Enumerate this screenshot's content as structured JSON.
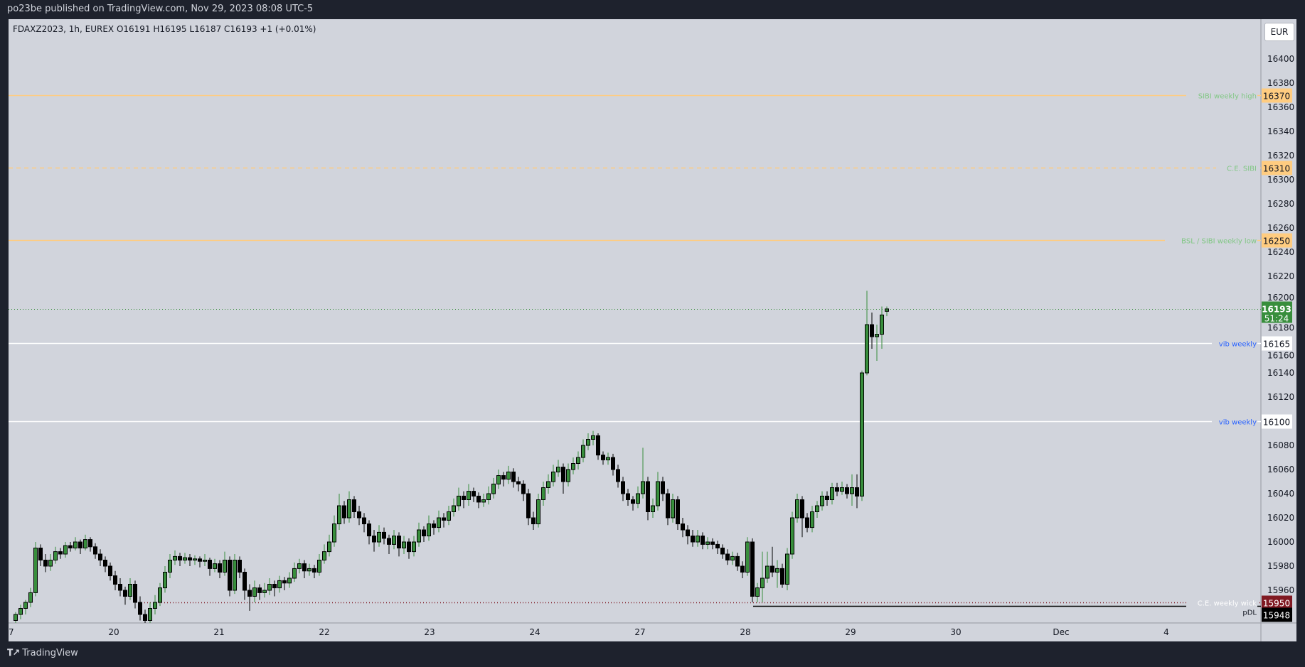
{
  "header": {
    "published": "po23be published on TradingView.com, Nov 29, 2023 08:08 UTC-5"
  },
  "legend": {
    "text": "FDAXZ2023, 1h, EUREX  O16191  H16195  L16187  C16193  +1 (+0.01%)"
  },
  "currency_button": "EUR",
  "footer": {
    "logo_text": "TradingView",
    "logo_icon": "tradingview-logo-icon"
  },
  "colors": {
    "up": "#388e3c",
    "down": "#000000",
    "background": "#d1d4dc",
    "page": "#1e222d",
    "sibi": "#ffcc80",
    "sibi_label": "#81c784",
    "vib_label": "#2962ff",
    "wick_level": "#801922"
  },
  "chart_data": {
    "type": "candlestick",
    "symbol": "FDAXZ2023",
    "interval": "1h",
    "exchange": "EUREX",
    "ylim": [
      15933,
      16433
    ],
    "yticks": [
      15960,
      15980,
      16000,
      16020,
      16040,
      16060,
      16080,
      16100,
      16120,
      16140,
      16160,
      16180,
      16200,
      16220,
      16240,
      16260,
      16280,
      16300,
      16320,
      16340,
      16360,
      16380,
      16400
    ],
    "xticks": [
      "7",
      "20",
      "21",
      "22",
      "23",
      "24",
      "27",
      "28",
      "29",
      "30",
      "Dec",
      "4"
    ],
    "grid": false,
    "current_price": {
      "value": "16193",
      "countdown": "51:24"
    },
    "levels": [
      {
        "price": 16370,
        "label": "SIBI weekly high",
        "tag": "16370",
        "style": "solid",
        "kind": "sibi"
      },
      {
        "price": 16310,
        "label": "C.E. SIBI",
        "tag": "16310",
        "style": "dashed",
        "kind": "sibi"
      },
      {
        "price": 16250,
        "label": "BSL / SIBI weekly low",
        "tag": "16250",
        "style": "solid",
        "kind": "sibi"
      },
      {
        "price": 16165,
        "label": "vib weekly",
        "tag": "16165",
        "style": "solid",
        "kind": "vib"
      },
      {
        "price": 16100,
        "label": "vib weekly",
        "tag": "16100",
        "style": "solid",
        "kind": "vib"
      },
      {
        "price": 15950,
        "label": "C.E. weekly wick",
        "tag": "15950",
        "style": "dotted",
        "kind": "wick"
      },
      {
        "price": 15948,
        "label": "pDL",
        "tag": "15948",
        "style": "solid",
        "kind": "pdl"
      }
    ],
    "candles_ohlc": [
      [
        15935,
        15942,
        15933,
        15940
      ],
      [
        15940,
        15948,
        15936,
        15945
      ],
      [
        15945,
        15952,
        15940,
        15950
      ],
      [
        15950,
        15962,
        15946,
        15958
      ],
      [
        15958,
        16000,
        15955,
        15995
      ],
      [
        15995,
        15998,
        15980,
        15985
      ],
      [
        15985,
        15990,
        15975,
        15980
      ],
      [
        15980,
        15990,
        15976,
        15985
      ],
      [
        15985,
        15996,
        15982,
        15992
      ],
      [
        15992,
        15995,
        15986,
        15990
      ],
      [
        15990,
        16000,
        15987,
        15997
      ],
      [
        15997,
        16000,
        15992,
        15995
      ],
      [
        15995,
        16004,
        15993,
        16000
      ],
      [
        16000,
        16002,
        15990,
        15995
      ],
      [
        15995,
        16006,
        15993,
        16002
      ],
      [
        16002,
        16004,
        15992,
        15996
      ],
      [
        15996,
        15999,
        15986,
        15990
      ],
      [
        15990,
        15994,
        15980,
        15985
      ],
      [
        15985,
        15988,
        15975,
        15980
      ],
      [
        15980,
        15983,
        15968,
        15972
      ],
      [
        15972,
        15976,
        15960,
        15965
      ],
      [
        15965,
        15970,
        15955,
        15960
      ],
      [
        15960,
        15963,
        15948,
        15955
      ],
      [
        15955,
        15970,
        15952,
        15965
      ],
      [
        15965,
        15968,
        15945,
        15950
      ],
      [
        15950,
        15955,
        15935,
        15940
      ],
      [
        15940,
        15944,
        15930,
        15935
      ],
      [
        15935,
        15950,
        15933,
        15945
      ],
      [
        15945,
        15956,
        15940,
        15950
      ],
      [
        15950,
        15966,
        15947,
        15962
      ],
      [
        15962,
        15980,
        15958,
        15975
      ],
      [
        15975,
        15990,
        15970,
        15985
      ],
      [
        15985,
        15993,
        15981,
        15988
      ],
      [
        15988,
        15991,
        15980,
        15985
      ],
      [
        15985,
        15991,
        15982,
        15987
      ],
      [
        15987,
        15990,
        15980,
        15985
      ],
      [
        15985,
        15989,
        15981,
        15986
      ],
      [
        15986,
        15988,
        15979,
        15984
      ],
      [
        15984,
        15990,
        15980,
        15985
      ],
      [
        15985,
        15987,
        15972,
        15978
      ],
      [
        15978,
        15986,
        15975,
        15982
      ],
      [
        15982,
        15985,
        15970,
        15975
      ],
      [
        15975,
        15992,
        15972,
        15985
      ],
      [
        15985,
        15988,
        15955,
        15960
      ],
      [
        15960,
        15990,
        15957,
        15985
      ],
      [
        15985,
        15988,
        15970,
        15975
      ],
      [
        15975,
        15978,
        15952,
        15960
      ],
      [
        15960,
        15965,
        15943,
        15955
      ],
      [
        15955,
        15968,
        15950,
        15962
      ],
      [
        15962,
        15965,
        15952,
        15958
      ],
      [
        15958,
        15966,
        15954,
        15960
      ],
      [
        15960,
        15970,
        15956,
        15965
      ],
      [
        15965,
        15968,
        15955,
        15962
      ],
      [
        15962,
        15972,
        15958,
        15968
      ],
      [
        15968,
        15971,
        15960,
        15966
      ],
      [
        15966,
        15975,
        15962,
        15970
      ],
      [
        15970,
        15983,
        15967,
        15978
      ],
      [
        15978,
        15986,
        15974,
        15982
      ],
      [
        15982,
        15985,
        15970,
        15976
      ],
      [
        15976,
        15982,
        15972,
        15978
      ],
      [
        15978,
        15981,
        15970,
        15975
      ],
      [
        15975,
        15990,
        15972,
        15985
      ],
      [
        15985,
        15998,
        15982,
        15992
      ],
      [
        15992,
        16006,
        15988,
        16000
      ],
      [
        16000,
        16022,
        15996,
        16015
      ],
      [
        16015,
        16040,
        16010,
        16030
      ],
      [
        16030,
        16034,
        16015,
        16020
      ],
      [
        16020,
        16042,
        16016,
        16035
      ],
      [
        16035,
        16038,
        16020,
        16025
      ],
      [
        16025,
        16030,
        16014,
        16020
      ],
      [
        16020,
        16024,
        16008,
        16015
      ],
      [
        16015,
        16018,
        15998,
        16005
      ],
      [
        16005,
        16010,
        15992,
        16000
      ],
      [
        16000,
        16014,
        15996,
        16008
      ],
      [
        16008,
        16012,
        15998,
        16003
      ],
      [
        16003,
        16006,
        15990,
        15998
      ],
      [
        15998,
        16010,
        15994,
        16005
      ],
      [
        16005,
        16008,
        15988,
        15995
      ],
      [
        15995,
        16005,
        15990,
        16000
      ],
      [
        16000,
        16003,
        15986,
        15992
      ],
      [
        15992,
        16005,
        15988,
        16000
      ],
      [
        16000,
        16016,
        15996,
        16010
      ],
      [
        16010,
        16013,
        16000,
        16005
      ],
      [
        16005,
        16022,
        16001,
        16015
      ],
      [
        16015,
        16018,
        16006,
        16012
      ],
      [
        16012,
        16026,
        16008,
        16020
      ],
      [
        16020,
        16024,
        16012,
        16018
      ],
      [
        16018,
        16030,
        16014,
        16025
      ],
      [
        16025,
        16036,
        16021,
        16030
      ],
      [
        16030,
        16045,
        16026,
        16038
      ],
      [
        16038,
        16042,
        16028,
        16035
      ],
      [
        16035,
        16048,
        16030,
        16042
      ],
      [
        16042,
        16045,
        16033,
        16038
      ],
      [
        16038,
        16041,
        16028,
        16033
      ],
      [
        16033,
        16040,
        16029,
        16035
      ],
      [
        16035,
        16046,
        16031,
        16040
      ],
      [
        16040,
        16053,
        16036,
        16048
      ],
      [
        16048,
        16060,
        16044,
        16055
      ],
      [
        16055,
        16058,
        16046,
        16052
      ],
      [
        16052,
        16063,
        16048,
        16058
      ],
      [
        16058,
        16061,
        16045,
        16050
      ],
      [
        16050,
        16054,
        16042,
        16048
      ],
      [
        16048,
        16051,
        16034,
        16040
      ],
      [
        16040,
        16044,
        16014,
        16020
      ],
      [
        16020,
        16025,
        16010,
        16015
      ],
      [
        16015,
        16040,
        16012,
        16035
      ],
      [
        16035,
        16050,
        16030,
        16045
      ],
      [
        16045,
        16056,
        16040,
        16050
      ],
      [
        16050,
        16064,
        16046,
        16058
      ],
      [
        16058,
        16068,
        16054,
        16062
      ],
      [
        16062,
        16065,
        16040,
        16050
      ],
      [
        16050,
        16065,
        16046,
        16060
      ],
      [
        16060,
        16070,
        16056,
        16065
      ],
      [
        16065,
        16075,
        16060,
        16070
      ],
      [
        16070,
        16085,
        16066,
        16080
      ],
      [
        16080,
        16090,
        16076,
        16085
      ],
      [
        16085,
        16092,
        16080,
        16088
      ],
      [
        16088,
        16090,
        16068,
        16072
      ],
      [
        16072,
        16075,
        16064,
        16068
      ],
      [
        16068,
        16074,
        16064,
        16070
      ],
      [
        16070,
        16073,
        16055,
        16060
      ],
      [
        16060,
        16064,
        16045,
        16050
      ],
      [
        16050,
        16054,
        16034,
        16040
      ],
      [
        16040,
        16044,
        16030,
        16035
      ],
      [
        16035,
        16038,
        16026,
        16032
      ],
      [
        16032,
        16046,
        16028,
        16040
      ],
      [
        16040,
        16078,
        16036,
        16050
      ],
      [
        16050,
        16054,
        16018,
        16025
      ],
      [
        16025,
        16036,
        16020,
        16030
      ],
      [
        16030,
        16058,
        16026,
        16050
      ],
      [
        16050,
        16054,
        16034,
        16040
      ],
      [
        16040,
        16044,
        16014,
        16020
      ],
      [
        16020,
        16040,
        16016,
        16035
      ],
      [
        16035,
        16038,
        16010,
        16015
      ],
      [
        16015,
        16020,
        16004,
        16010
      ],
      [
        16010,
        16014,
        15998,
        16005
      ],
      [
        16005,
        16010,
        15996,
        16000
      ],
      [
        16000,
        16010,
        15996,
        16005
      ],
      [
        16005,
        16008,
        15994,
        15998
      ],
      [
        15998,
        16004,
        15994,
        16000
      ],
      [
        16000,
        16003,
        15994,
        15998
      ],
      [
        15998,
        16001,
        15990,
        15995
      ],
      [
        15995,
        15998,
        15986,
        15990
      ],
      [
        15990,
        15994,
        15981,
        15985
      ],
      [
        15985,
        15992,
        15981,
        15988
      ],
      [
        15988,
        15991,
        15976,
        15980
      ],
      [
        15980,
        15984,
        15970,
        15975
      ],
      [
        15975,
        16004,
        15972,
        16000
      ],
      [
        16000,
        16003,
        15950,
        15955
      ],
      [
        15955,
        15966,
        15950,
        15962
      ],
      [
        15962,
        15992,
        15950,
        15970
      ],
      [
        15970,
        15992,
        15966,
        15980
      ],
      [
        15980,
        15996,
        15971,
        15975
      ],
      [
        15975,
        15985,
        15962,
        15978
      ],
      [
        15978,
        15982,
        15962,
        15965
      ],
      [
        15965,
        15995,
        15960,
        15990
      ],
      [
        15990,
        16025,
        15986,
        16020
      ],
      [
        16020,
        16040,
        16016,
        16035
      ],
      [
        16035,
        16038,
        16004,
        16020
      ],
      [
        16020,
        16024,
        16008,
        16012
      ],
      [
        16012,
        16030,
        16008,
        16025
      ],
      [
        16025,
        16034,
        16020,
        16030
      ],
      [
        16030,
        16042,
        16026,
        16038
      ],
      [
        16038,
        16042,
        16030,
        16035
      ],
      [
        16035,
        16049,
        16031,
        16045
      ],
      [
        16045,
        16049,
        16038,
        16042
      ],
      [
        16042,
        16050,
        16039,
        16045
      ],
      [
        16045,
        16048,
        16036,
        16040
      ],
      [
        16040,
        16056,
        16030,
        16045
      ],
      [
        16045,
        16056,
        16028,
        16038
      ],
      [
        16038,
        16142,
        16034,
        16140
      ],
      [
        16140,
        16208,
        16138,
        16180
      ],
      [
        16180,
        16190,
        16160,
        16170
      ],
      [
        16170,
        16180,
        16150,
        16172
      ],
      [
        16172,
        16195,
        16160,
        16188
      ],
      [
        16191,
        16195,
        16187,
        16193
      ]
    ]
  }
}
